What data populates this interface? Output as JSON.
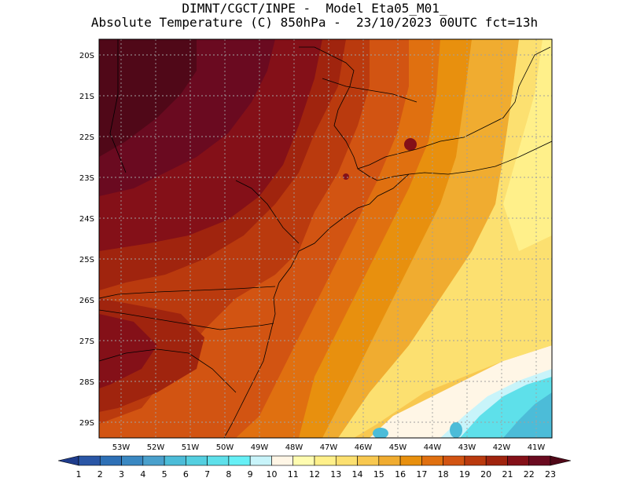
{
  "header": {
    "title_line1": "DIMNT/CGCT/INPE -  Model Eta05_M01_",
    "title_line2": "Absolute Temperature (C) 850hPa -  23/10/2023 00UTC fct=13h"
  },
  "map": {
    "lon_ticks": [
      "53W",
      "52W",
      "51W",
      "50W",
      "49W",
      "48W",
      "47W",
      "46W",
      "45W",
      "44W",
      "43W",
      "42W",
      "41W"
    ],
    "lat_ticks": [
      "20S",
      "21S",
      "22S",
      "23S",
      "24S",
      "25S",
      "26S",
      "27S",
      "28S",
      "29S"
    ],
    "lon_range": [
      -53.8,
      -40.6
    ],
    "lat_range": [
      -29.6,
      -19.8
    ],
    "field_description_levels": "filled temperature bands, warmest (23+) in the northwest interior, cooling toward the south-east ocean"
  },
  "colorbar": {
    "labels": [
      "1",
      "2",
      "3",
      "4",
      "5",
      "6",
      "7",
      "8",
      "9",
      "10",
      "11",
      "12",
      "13",
      "14",
      "15",
      "16",
      "17",
      "18",
      "19",
      "20",
      "21",
      "22",
      "23"
    ],
    "colors": [
      "#1e3c8c",
      "#2a56a6",
      "#2e70b6",
      "#3a88c2",
      "#4aa0cc",
      "#4cbcd8",
      "#54cfe0",
      "#5ee0ea",
      "#66f0f6",
      "#c8f4fa",
      "#fff6e6",
      "#fffcb0",
      "#fff08a",
      "#fce070",
      "#f8c850",
      "#f0ac30",
      "#e8900e",
      "#e07010",
      "#d25412",
      "#ba3a0e",
      "#a0240e",
      "#841018",
      "#6a0a20",
      "#500818"
    ]
  },
  "colors": {
    "grid": "#a0a0a0",
    "border": "#000000"
  }
}
